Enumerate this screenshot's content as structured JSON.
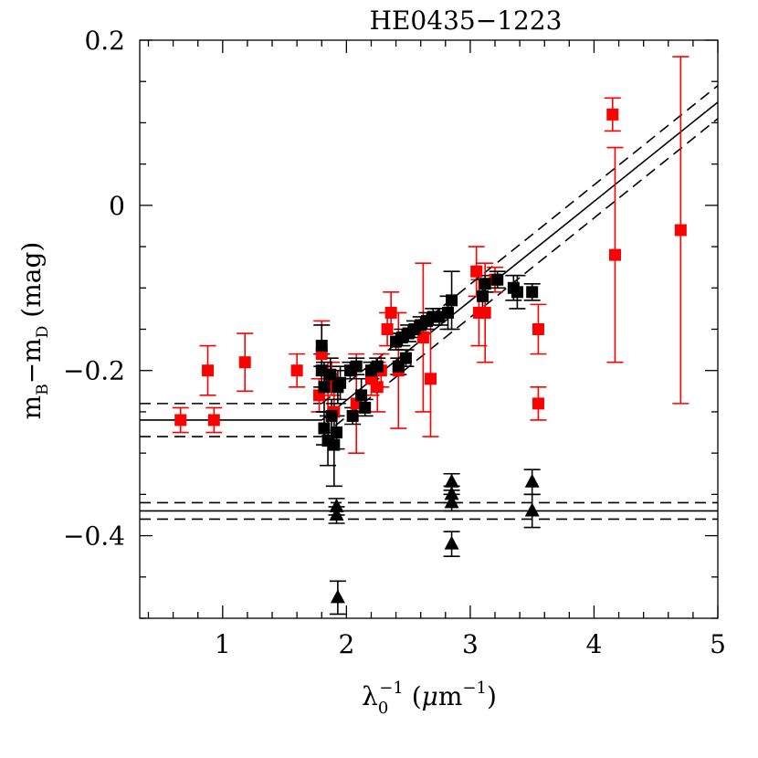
{
  "chart_data": {
    "type": "scatter",
    "title": "HE0435−1223",
    "xlabel": "λ0−1 (μm−1)",
    "ylabel": "mB−mD (mag)",
    "xlim": [
      0.33,
      5.0
    ],
    "ylim": [
      -0.5,
      0.2
    ],
    "x_ticks": [
      {
        "value": 1,
        "label": "1"
      },
      {
        "value": 2,
        "label": "2"
      },
      {
        "value": 3,
        "label": "3"
      },
      {
        "value": 4,
        "label": "4"
      },
      {
        "value": 5,
        "label": "5"
      }
    ],
    "y_ticks": [
      {
        "value": 0.2,
        "label": "0.2"
      },
      {
        "value": 0,
        "label": "0"
      },
      {
        "value": -0.2,
        "label": "−0.2"
      },
      {
        "value": -0.4,
        "label": "−0.4"
      }
    ],
    "x_minor_step": 0.2,
    "y_minor_step": 0.05,
    "grid": false,
    "series": [
      {
        "name": "red squares",
        "marker": "square",
        "color": "#ff0000",
        "points": [
          {
            "x": 0.66,
            "y": -0.26,
            "err": 0.015
          },
          {
            "x": 0.88,
            "y": -0.2,
            "err": 0.03
          },
          {
            "x": 0.93,
            "y": -0.26,
            "err": 0.015
          },
          {
            "x": 1.18,
            "y": -0.19,
            "err": 0.035
          },
          {
            "x": 1.6,
            "y": -0.2,
            "err": 0.02
          },
          {
            "x": 1.78,
            "y": -0.23,
            "err": 0.02
          },
          {
            "x": 1.8,
            "y": -0.18,
            "err": 0.04
          },
          {
            "x": 1.85,
            "y": -0.22,
            "err": 0.03
          },
          {
            "x": 1.88,
            "y": -0.21,
            "err": 0.02
          },
          {
            "x": 1.9,
            "y": -0.25,
            "err": 0.03
          },
          {
            "x": 2.08,
            "y": -0.24,
            "err": 0.06
          },
          {
            "x": 2.2,
            "y": -0.21,
            "err": 0.02
          },
          {
            "x": 2.25,
            "y": -0.22,
            "err": 0.03
          },
          {
            "x": 2.28,
            "y": -0.2,
            "err": 0.02
          },
          {
            "x": 2.33,
            "y": -0.15,
            "err": 0.02
          },
          {
            "x": 2.36,
            "y": -0.13,
            "err": 0.025
          },
          {
            "x": 2.42,
            "y": -0.2,
            "err": 0.07
          },
          {
            "x": 2.62,
            "y": -0.16,
            "err": 0.09
          },
          {
            "x": 2.68,
            "y": -0.21,
            "err": 0.07
          },
          {
            "x": 3.05,
            "y": -0.08,
            "err": 0.03
          },
          {
            "x": 3.07,
            "y": -0.13,
            "err": 0.04
          },
          {
            "x": 3.12,
            "y": -0.13,
            "err": 0.06
          },
          {
            "x": 3.2,
            "y": -0.09,
            "err": 0.015
          },
          {
            "x": 3.55,
            "y": -0.15,
            "err": 0.03
          },
          {
            "x": 3.55,
            "y": -0.24,
            "err": 0.02
          },
          {
            "x": 4.15,
            "y": 0.11,
            "err": 0.02
          },
          {
            "x": 4.17,
            "y": -0.06,
            "err": 0.13
          },
          {
            "x": 4.7,
            "y": -0.03,
            "err": 0.21
          }
        ]
      },
      {
        "name": "black squares",
        "marker": "square",
        "color": "#000000",
        "points": [
          {
            "x": 1.8,
            "y": -0.17,
            "err": 0.025
          },
          {
            "x": 1.8,
            "y": -0.2,
            "err": 0.02
          },
          {
            "x": 1.82,
            "y": -0.22,
            "err": 0.03
          },
          {
            "x": 1.82,
            "y": -0.27,
            "err": 0.02
          },
          {
            "x": 1.85,
            "y": -0.285,
            "err": 0.03
          },
          {
            "x": 1.87,
            "y": -0.205,
            "err": 0.02
          },
          {
            "x": 1.88,
            "y": -0.255,
            "err": 0.02
          },
          {
            "x": 1.9,
            "y": -0.29,
            "err": 0.05
          },
          {
            "x": 1.92,
            "y": -0.275,
            "err": 0.02
          },
          {
            "x": 1.93,
            "y": -0.22,
            "err": 0.02
          },
          {
            "x": 1.95,
            "y": -0.215,
            "err": 0.02
          },
          {
            "x": 2.03,
            "y": -0.2,
            "err": 0.01
          },
          {
            "x": 2.05,
            "y": -0.255,
            "err": 0.01
          },
          {
            "x": 2.08,
            "y": -0.195,
            "err": 0.01
          },
          {
            "x": 2.12,
            "y": -0.23,
            "err": 0.02
          },
          {
            "x": 2.15,
            "y": -0.245,
            "err": 0.01
          },
          {
            "x": 2.2,
            "y": -0.2,
            "err": 0.01
          },
          {
            "x": 2.25,
            "y": -0.195,
            "err": 0.01
          },
          {
            "x": 2.4,
            "y": -0.165,
            "err": 0.01
          },
          {
            "x": 2.42,
            "y": -0.195,
            "err": 0.01
          },
          {
            "x": 2.45,
            "y": -0.16,
            "err": 0.01
          },
          {
            "x": 2.48,
            "y": -0.185,
            "err": 0.01
          },
          {
            "x": 2.5,
            "y": -0.155,
            "err": 0.01
          },
          {
            "x": 2.55,
            "y": -0.15,
            "err": 0.01
          },
          {
            "x": 2.6,
            "y": -0.145,
            "err": 0.01
          },
          {
            "x": 2.65,
            "y": -0.14,
            "err": 0.01
          },
          {
            "x": 2.7,
            "y": -0.135,
            "err": 0.01
          },
          {
            "x": 2.75,
            "y": -0.135,
            "err": 0.01
          },
          {
            "x": 2.82,
            "y": -0.13,
            "err": 0.02
          },
          {
            "x": 2.85,
            "y": -0.115,
            "err": 0.035
          },
          {
            "x": 3.1,
            "y": -0.11,
            "err": 0.02
          },
          {
            "x": 3.12,
            "y": -0.095,
            "err": 0.01
          },
          {
            "x": 3.22,
            "y": -0.09,
            "err": 0.01
          },
          {
            "x": 3.35,
            "y": -0.1,
            "err": 0.015
          },
          {
            "x": 3.38,
            "y": -0.105,
            "err": 0.02
          },
          {
            "x": 3.5,
            "y": -0.105,
            "err": 0.01
          }
        ]
      },
      {
        "name": "black triangles",
        "marker": "triangle",
        "color": "#000000",
        "points": [
          {
            "x": 1.92,
            "y": -0.365,
            "err": 0.01
          },
          {
            "x": 1.92,
            "y": -0.375,
            "err": 0.01
          },
          {
            "x": 1.93,
            "y": -0.475,
            "err": 0.02
          },
          {
            "x": 2.85,
            "y": -0.335,
            "err": 0.01
          },
          {
            "x": 2.85,
            "y": -0.35,
            "err": 0.01
          },
          {
            "x": 2.85,
            "y": -0.36,
            "err": 0.01
          },
          {
            "x": 2.85,
            "y": -0.41,
            "err": 0.015
          },
          {
            "x": 3.5,
            "y": -0.335,
            "err": 0.015
          },
          {
            "x": 3.5,
            "y": -0.37,
            "err": 0.02
          }
        ]
      }
    ],
    "lines": [
      {
        "name": "upper fit",
        "style": "solid",
        "x": [
          0.33,
          1.8
        ],
        "y": [
          -0.26,
          -0.26
        ]
      },
      {
        "name": "upper fit band high",
        "style": "dashed",
        "x": [
          0.33,
          1.8
        ],
        "y": [
          -0.24,
          -0.24
        ]
      },
      {
        "name": "upper fit band low",
        "style": "dashed",
        "x": [
          0.33,
          1.8
        ],
        "y": [
          -0.28,
          -0.28
        ]
      },
      {
        "name": "slope fit",
        "style": "solid",
        "x": [
          1.8,
          5.0
        ],
        "y": [
          -0.26,
          0.125
        ]
      },
      {
        "name": "slope fit band high",
        "style": "dashed",
        "x": [
          1.8,
          5.0
        ],
        "y": [
          -0.24,
          0.145
        ]
      },
      {
        "name": "slope fit band low",
        "style": "dashed",
        "x": [
          1.8,
          5.0
        ],
        "y": [
          -0.28,
          0.105
        ]
      },
      {
        "name": "lower fit",
        "style": "solid",
        "x": [
          0.33,
          5.0
        ],
        "y": [
          -0.37,
          -0.37
        ]
      },
      {
        "name": "lower fit band high",
        "style": "dashed",
        "x": [
          0.33,
          5.0
        ],
        "y": [
          -0.36,
          -0.36
        ]
      },
      {
        "name": "lower fit band low",
        "style": "dashed",
        "x": [
          0.33,
          5.0
        ],
        "y": [
          -0.38,
          -0.38
        ]
      }
    ]
  }
}
